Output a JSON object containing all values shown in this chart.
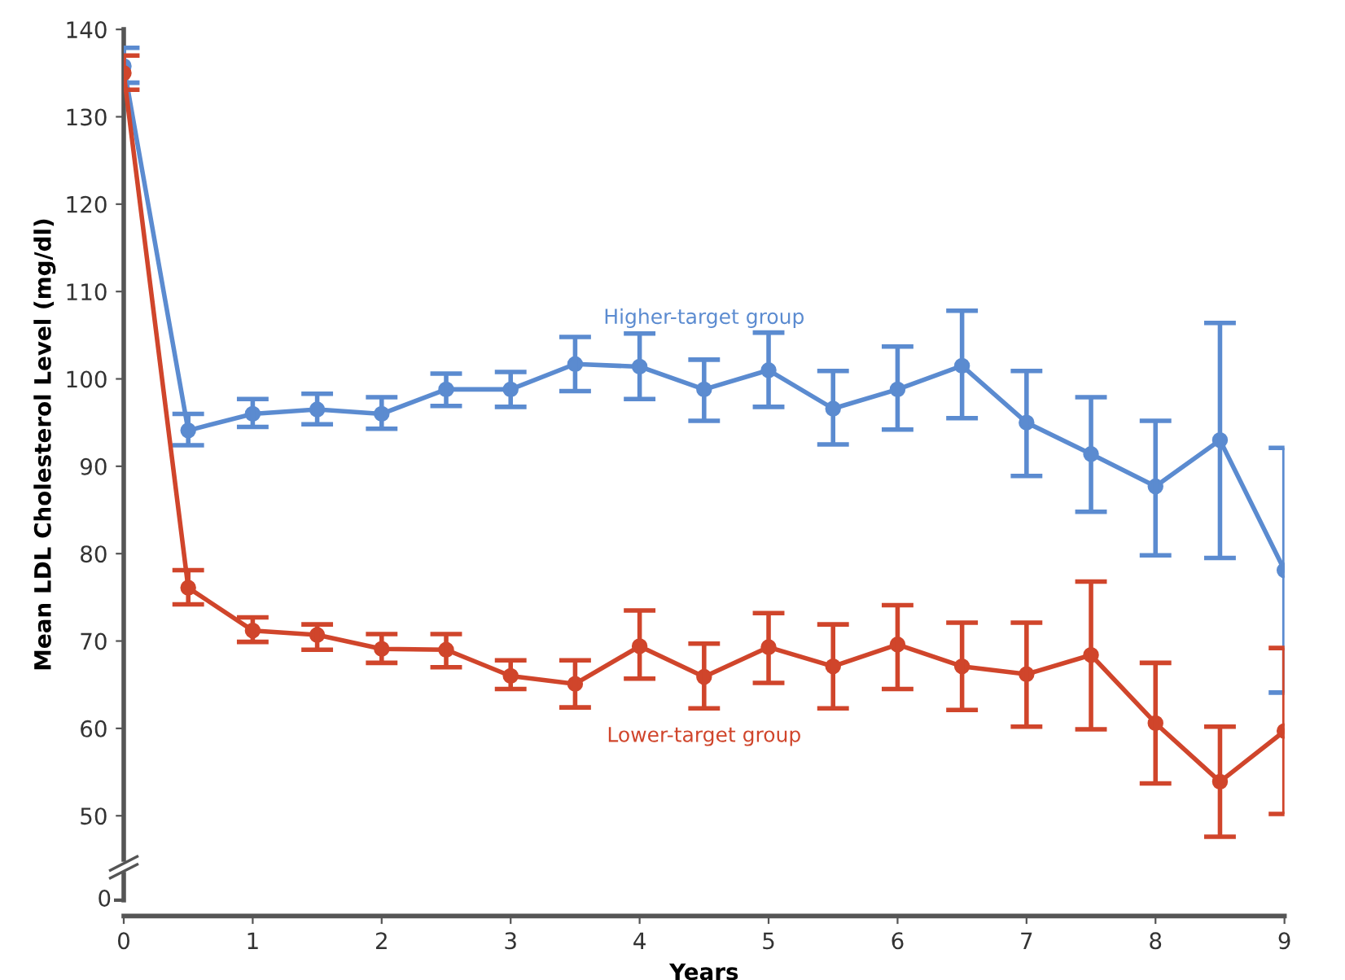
{
  "chart_data": {
    "type": "line",
    "ylabel": "Mean LDL Cholesterol Level (mg/dl)",
    "xlabel": "Years",
    "xlim": [
      0,
      9
    ],
    "xticks": [
      0,
      1,
      2,
      3,
      4,
      5,
      6,
      7,
      8,
      9
    ],
    "ylim": [
      45,
      140
    ],
    "yticks": [
      50,
      60,
      70,
      80,
      90,
      100,
      110,
      120,
      130,
      140
    ],
    "grid": false,
    "legend": false,
    "marker": "circle",
    "line_style": "solid",
    "annotations": [
      "0"
    ],
    "x": [
      0,
      0.5,
      1,
      1.5,
      2,
      2.5,
      3,
      3.5,
      4,
      4.5,
      5,
      5.5,
      6,
      6.5,
      7,
      7.5,
      8,
      8.5,
      9
    ],
    "series": [
      {
        "name": "Higher-target group",
        "color": "#5b8bd0",
        "values": [
          135.8,
          94.1,
          96.0,
          96.5,
          96.0,
          98.8,
          98.8,
          101.7,
          101.4,
          98.8,
          101.0,
          96.6,
          98.8,
          101.5,
          95.0,
          91.4,
          87.7,
          93.0,
          78.1
        ],
        "errors": [
          [
            133.9,
            137.9
          ],
          [
            92.4,
            96.0
          ],
          [
            94.5,
            97.7
          ],
          [
            94.8,
            98.3
          ],
          [
            94.3,
            97.9
          ],
          [
            96.9,
            100.6
          ],
          [
            96.8,
            100.8
          ],
          [
            98.6,
            104.8
          ],
          [
            97.7,
            105.2
          ],
          [
            95.2,
            102.2
          ],
          [
            96.8,
            105.3
          ],
          [
            92.5,
            100.9
          ],
          [
            94.2,
            103.7
          ],
          [
            95.5,
            107.8
          ],
          [
            88.9,
            100.9
          ],
          [
            84.8,
            97.9
          ],
          [
            79.8,
            95.2
          ],
          [
            79.5,
            106.4
          ],
          [
            64.1,
            92.1
          ]
        ]
      },
      {
        "name": "Lower-target group",
        "color": "#d0452b",
        "values": [
          135.0,
          76.1,
          71.2,
          70.7,
          69.1,
          69.0,
          66.0,
          65.1,
          69.4,
          65.9,
          69.3,
          67.1,
          69.6,
          67.1,
          66.2,
          68.4,
          60.6,
          53.9,
          59.7
        ],
        "errors": [
          [
            133.1,
            137.0
          ],
          [
            74.2,
            78.1
          ],
          [
            69.9,
            72.7
          ],
          [
            69.0,
            71.9
          ],
          [
            67.5,
            70.8
          ],
          [
            67.0,
            70.8
          ],
          [
            64.5,
            67.8
          ],
          [
            62.4,
            67.8
          ],
          [
            65.7,
            73.5
          ],
          [
            62.3,
            69.7
          ],
          [
            65.2,
            73.2
          ],
          [
            62.3,
            71.9
          ],
          [
            64.5,
            74.1
          ],
          [
            62.1,
            72.1
          ],
          [
            60.2,
            72.1
          ],
          [
            59.9,
            76.8
          ],
          [
            53.7,
            67.5
          ],
          [
            47.6,
            60.2
          ],
          [
            50.2,
            69.2
          ]
        ]
      }
    ]
  }
}
